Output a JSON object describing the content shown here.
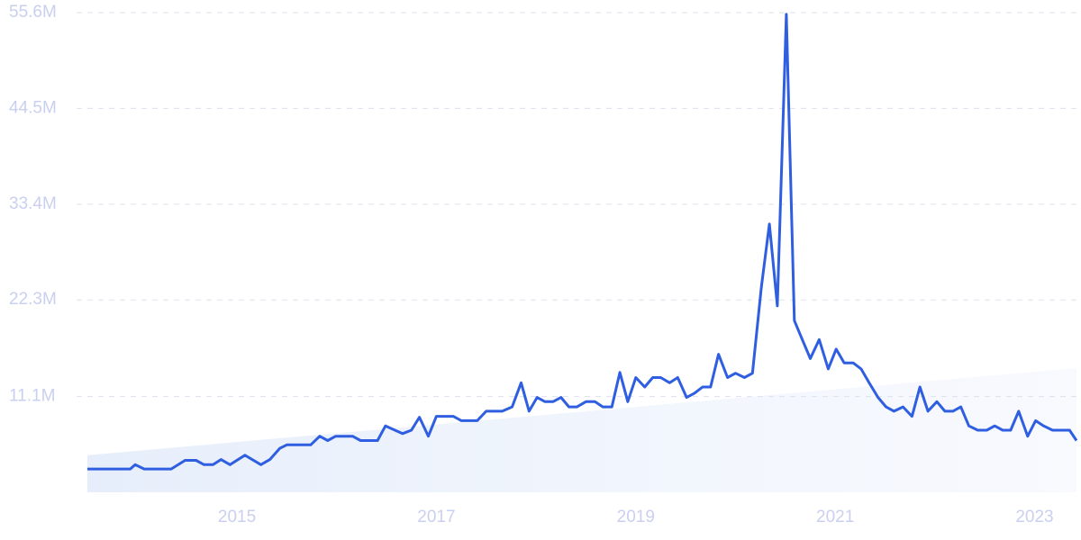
{
  "chart_data": {
    "type": "line",
    "color": "#2f5fe0",
    "grid": true,
    "xlim": [
      2013.5,
      2023.42
    ],
    "xticks": [
      2015,
      2017,
      2019,
      2021,
      2023
    ],
    "ylim": [
      0,
      55.6
    ],
    "yticks": [
      {
        "value": 11.1,
        "label": "11.1M"
      },
      {
        "value": 22.3,
        "label": "22.3M"
      },
      {
        "value": 33.4,
        "label": "33.4M"
      },
      {
        "value": 44.5,
        "label": "44.5M"
      },
      {
        "value": 55.6,
        "label": "55.6M"
      }
    ],
    "x": [
      2013.5,
      2013.93,
      2013.98,
      2014.07,
      2014.34,
      2014.48,
      2014.59,
      2014.67,
      2014.76,
      2014.84,
      2014.93,
      2015.08,
      2015.24,
      2015.33,
      2015.43,
      2015.5,
      2015.74,
      2015.83,
      2015.91,
      2015.99,
      2016.16,
      2016.24,
      2016.41,
      2016.49,
      2016.66,
      2016.75,
      2016.83,
      2016.92,
      2017.0,
      2017.17,
      2017.25,
      2017.41,
      2017.5,
      2017.66,
      2017.76,
      2017.85,
      2017.93,
      2018.01,
      2018.09,
      2018.17,
      2018.25,
      2018.33,
      2018.41,
      2018.5,
      2018.59,
      2018.67,
      2018.76,
      2018.84,
      2018.92,
      2019.0,
      2019.09,
      2019.17,
      2019.25,
      2019.34,
      2019.42,
      2019.51,
      2019.59,
      2019.67,
      2019.75,
      2019.83,
      2019.92,
      2020.0,
      2020.09,
      2020.17,
      2020.26,
      2020.34,
      2020.42,
      2020.51,
      2020.59,
      2020.67,
      2020.75,
      2020.84,
      2020.93,
      2021.01,
      2021.09,
      2021.18,
      2021.26,
      2021.34,
      2021.43,
      2021.51,
      2021.59,
      2021.68,
      2021.77,
      2021.85,
      2021.93,
      2022.02,
      2022.1,
      2022.18,
      2022.26,
      2022.34,
      2022.43,
      2022.52,
      2022.6,
      2022.68,
      2022.76,
      2022.84,
      2022.93,
      2023.01,
      2023.09,
      2023.18,
      2023.35,
      2023.42
    ],
    "values": [
      2.7,
      2.7,
      3.2,
      2.7,
      2.7,
      3.7,
      3.7,
      3.2,
      3.2,
      3.8,
      3.2,
      4.3,
      3.2,
      3.8,
      5.1,
      5.5,
      5.5,
      6.5,
      6.0,
      6.5,
      6.5,
      6.0,
      6.0,
      7.7,
      6.8,
      7.2,
      8.7,
      6.5,
      8.8,
      8.8,
      8.3,
      8.3,
      9.4,
      9.4,
      9.9,
      12.7,
      9.4,
      11.0,
      10.5,
      10.5,
      11.0,
      9.9,
      9.9,
      10.5,
      10.5,
      9.9,
      9.9,
      13.9,
      10.5,
      13.3,
      12.2,
      13.3,
      13.3,
      12.7,
      13.3,
      11.0,
      11.5,
      12.2,
      12.2,
      16.0,
      13.3,
      13.8,
      13.3,
      13.8,
      23.8,
      31.1,
      21.6,
      55.4,
      19.9,
      17.7,
      15.5,
      17.7,
      14.3,
      16.6,
      15.0,
      15.0,
      14.3,
      12.7,
      11.0,
      9.9,
      9.4,
      9.9,
      8.8,
      12.2,
      9.4,
      10.5,
      9.4,
      9.4,
      9.9,
      7.7,
      7.2,
      7.2,
      7.7,
      7.2,
      7.2,
      9.4,
      6.5,
      8.3,
      7.7,
      7.2,
      7.2,
      6.0
    ],
    "trend": {
      "x": [
        2013.5,
        2023.42
      ],
      "values": [
        4.3,
        14.4
      ]
    }
  }
}
